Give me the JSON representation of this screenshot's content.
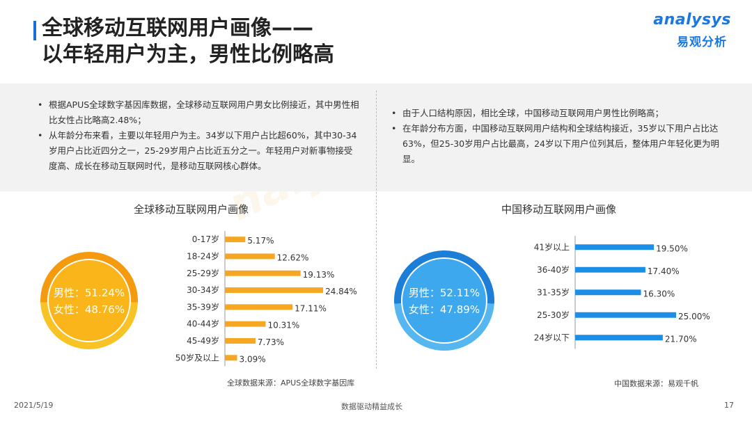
{
  "header": {
    "title_line1": "全球移动互联网用户画像——",
    "title_line2": "以年轻用户为主，男性比例略高",
    "logo_en": "analysys",
    "logo_cn": "易观分析"
  },
  "left_text": {
    "bullets": [
      "根据APUS全球数字基因库数据，全球移动互联网用户男女比例接近，其中男性相比女性占比略高2.48%；",
      "从年龄分布来看，主要以年轻用户为主。34岁以下用户占比超60%，其中30-34岁用户占比近四分之一，25-29岁用户占比近五分之一。年轻用户对新事物接受度高、成长在移动互联网时代，是移动互联网核心群体。"
    ]
  },
  "right_text": {
    "bullets": [
      "由于人口结构原因，相比全球，中国移动互联网用户男性比例略高；",
      "在年龄分布方面，中国移动互联网用户结构和全球结构接近，35岁以下用户占比达63%，但25-30岁用户占比最高，24岁以下用户位列其后，整体用户年轻化更为明显。"
    ]
  },
  "chart_data": [
    {
      "type": "pie",
      "title": "全球移动互联网用户画像",
      "categories": [
        "男性",
        "女性"
      ],
      "values": [
        51.24,
        48.76
      ],
      "labels": [
        "男性：51.24%",
        "女性：48.76%"
      ],
      "colors": [
        "#f59a0e",
        "#f9c325"
      ]
    },
    {
      "type": "bar",
      "orientation": "horizontal",
      "title": "全球移动互联网用户画像",
      "categories": [
        "0-17岁",
        "18-24岁",
        "25-29岁",
        "30-34岁",
        "35-39岁",
        "40-44岁",
        "45-49岁",
        "50岁及以上"
      ],
      "values": [
        5.17,
        12.62,
        19.13,
        24.84,
        17.11,
        10.31,
        7.73,
        3.09
      ],
      "value_labels": [
        "5.17%",
        "12.62%",
        "19.13%",
        "24.84%",
        "17.11%",
        "10.31%",
        "7.73%",
        "3.09%"
      ],
      "color": "#f5a623",
      "xlim": [
        0,
        25
      ]
    },
    {
      "type": "pie",
      "title": "中国移动互联网用户画像",
      "categories": [
        "男性",
        "女性"
      ],
      "values": [
        52.11,
        47.89
      ],
      "labels": [
        "男性：52.11%",
        "女性：47.89%"
      ],
      "colors": [
        "#1c7ed6",
        "#56b7f0"
      ]
    },
    {
      "type": "bar",
      "orientation": "horizontal",
      "title": "中国移动互联网用户画像",
      "categories": [
        "41岁以上",
        "36-40岁",
        "31-35岁",
        "25-30岁",
        "24岁以下"
      ],
      "values": [
        19.5,
        17.4,
        16.3,
        25.0,
        21.7
      ],
      "value_labels": [
        "19.50%",
        "17.40%",
        "16.30%",
        "25.00%",
        "21.70%"
      ],
      "color": "#1c8ee6",
      "xlim": [
        0,
        25
      ]
    }
  ],
  "sources": {
    "left": "全球数据来源：APUS全球数字基因库",
    "right": "中国数据来源：易观千帆"
  },
  "footer": {
    "date": "2021/5/19",
    "center": "数据驱动精益成长",
    "page": "17"
  }
}
